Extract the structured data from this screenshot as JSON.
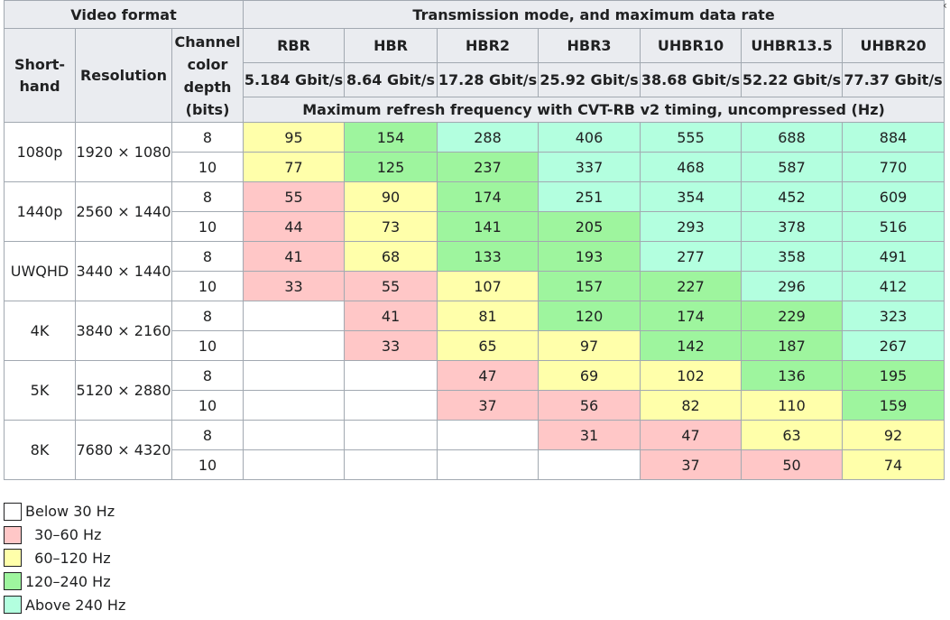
{
  "header": {
    "video_format": "Video format",
    "transmission": "Transmission mode, and maximum data rate",
    "shorthand": "Short-hand",
    "resolution": "Resolution",
    "channel_depth": "Channel color depth (bits)",
    "refresh_caption": "Maximum refresh frequency with CVT-RB v2 timing, uncompressed (Hz)",
    "modes": [
      {
        "name": "RBR",
        "rate": "5.184 Gbit/s"
      },
      {
        "name": "HBR",
        "rate": "8.64 Gbit/s"
      },
      {
        "name": "HBR2",
        "rate": "17.28 Gbit/s"
      },
      {
        "name": "HBR3",
        "rate": "25.92 Gbit/s"
      },
      {
        "name": "UHBR10",
        "rate": "38.68 Gbit/s"
      },
      {
        "name": "UHBR13.5",
        "rate": "52.22 Gbit/s"
      },
      {
        "name": "UHBR20",
        "rate": "77.37 Gbit/s"
      }
    ]
  },
  "rows": [
    {
      "shorthand": "1080p",
      "resolution": "1920 × 1080",
      "d8": {
        "depth": "8",
        "values": [
          "95",
          "154",
          "288",
          "406",
          "555",
          "688",
          "884"
        ],
        "classes": [
          "c2",
          "c3",
          "c4",
          "c4",
          "c4",
          "c4",
          "c4"
        ]
      },
      "d10": {
        "depth": "10",
        "values": [
          "77",
          "125",
          "237",
          "337",
          "468",
          "587",
          "770"
        ],
        "classes": [
          "c2",
          "c3",
          "c3",
          "c4",
          "c4",
          "c4",
          "c4"
        ]
      }
    },
    {
      "shorthand": "1440p",
      "resolution": "2560 × 1440",
      "d8": {
        "depth": "8",
        "values": [
          "55",
          "90",
          "174",
          "251",
          "354",
          "452",
          "609"
        ],
        "classes": [
          "c1",
          "c2",
          "c3",
          "c4",
          "c4",
          "c4",
          "c4"
        ]
      },
      "d10": {
        "depth": "10",
        "values": [
          "44",
          "73",
          "141",
          "205",
          "293",
          "378",
          "516"
        ],
        "classes": [
          "c1",
          "c2",
          "c3",
          "c3",
          "c4",
          "c4",
          "c4"
        ]
      }
    },
    {
      "shorthand": "UWQHD",
      "resolution": "3440 × 1440",
      "d8": {
        "depth": "8",
        "values": [
          "41",
          "68",
          "133",
          "193",
          "277",
          "358",
          "491"
        ],
        "classes": [
          "c1",
          "c2",
          "c3",
          "c3",
          "c4",
          "c4",
          "c4"
        ]
      },
      "d10": {
        "depth": "10",
        "values": [
          "33",
          "55",
          "107",
          "157",
          "227",
          "296",
          "412"
        ],
        "classes": [
          "c1",
          "c1",
          "c2",
          "c3",
          "c3",
          "c4",
          "c4"
        ]
      }
    },
    {
      "shorthand": "4K",
      "resolution": "3840 × 2160",
      "d8": {
        "depth": "8",
        "values": [
          "",
          "41",
          "81",
          "120",
          "174",
          "229",
          "323"
        ],
        "classes": [
          "c0",
          "c1",
          "c2",
          "c3",
          "c3",
          "c3",
          "c4"
        ]
      },
      "d10": {
        "depth": "10",
        "values": [
          "",
          "33",
          "65",
          "97",
          "142",
          "187",
          "267"
        ],
        "classes": [
          "c0",
          "c1",
          "c2",
          "c2",
          "c3",
          "c3",
          "c4"
        ]
      }
    },
    {
      "shorthand": "5K",
      "resolution": "5120 × 2880",
      "d8": {
        "depth": "8",
        "values": [
          "",
          "",
          "47",
          "69",
          "102",
          "136",
          "195"
        ],
        "classes": [
          "c0",
          "c0",
          "c1",
          "c2",
          "c2",
          "c3",
          "c3"
        ]
      },
      "d10": {
        "depth": "10",
        "values": [
          "",
          "",
          "37",
          "56",
          "82",
          "110",
          "159"
        ],
        "classes": [
          "c0",
          "c0",
          "c1",
          "c1",
          "c2",
          "c2",
          "c3"
        ]
      }
    },
    {
      "shorthand": "8K",
      "resolution": "7680 × 4320",
      "d8": {
        "depth": "8",
        "values": [
          "",
          "",
          "",
          "31",
          "47",
          "63",
          "92"
        ],
        "classes": [
          "c0",
          "c0",
          "c0",
          "c1",
          "c1",
          "c2",
          "c2"
        ]
      },
      "d10": {
        "depth": "10",
        "values": [
          "",
          "",
          "",
          "",
          "37",
          "50",
          "74"
        ],
        "classes": [
          "c0",
          "c0",
          "c0",
          "c0",
          "c1",
          "c1",
          "c2"
        ]
      }
    }
  ],
  "legend": [
    {
      "label": "Below 30 Hz",
      "color": "#ffffff"
    },
    {
      "label": "  30–60 Hz",
      "color": "#ffc7c7"
    },
    {
      "label": "  60–120 Hz",
      "color": "#ffffaa"
    },
    {
      "label": "120–240 Hz",
      "color": "#9ef59e"
    },
    {
      "label": "Above 240 Hz",
      "color": "#b3ffdf"
    }
  ],
  "colors": {
    "header_bg": "#eaecf0",
    "border": "#a2a9b1",
    "text": "#202122"
  }
}
